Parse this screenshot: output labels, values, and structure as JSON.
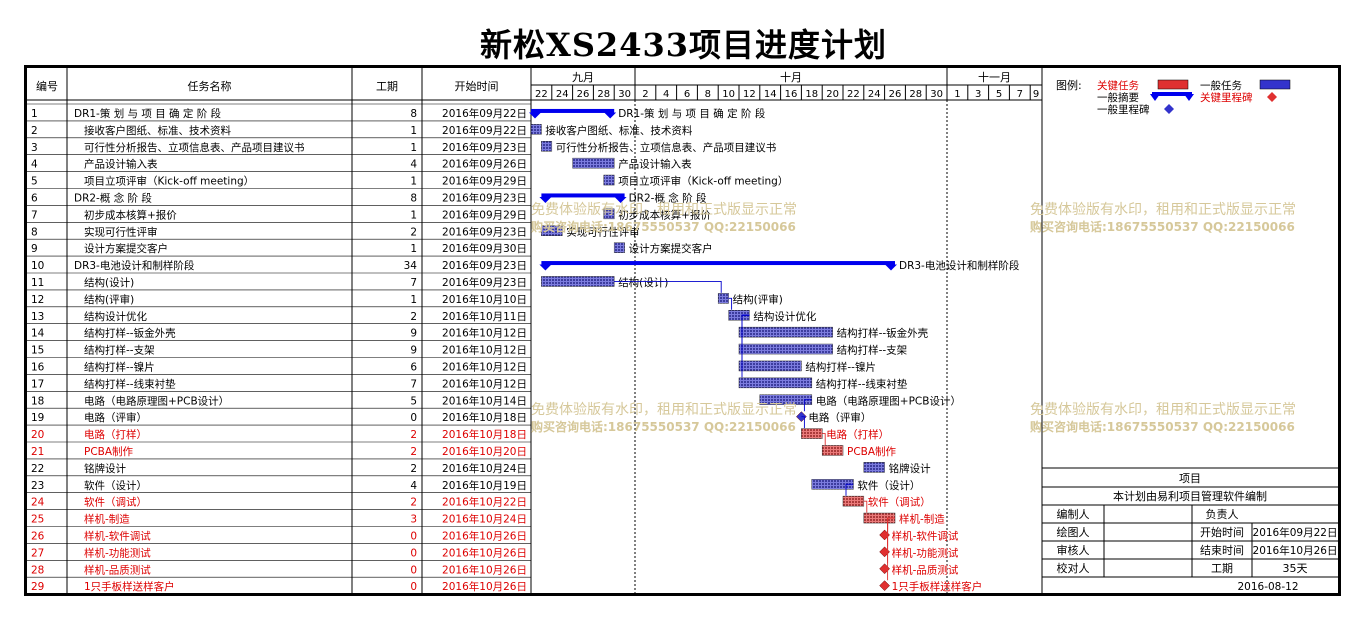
{
  "title": "新松XS2433项目进度计划",
  "columns": {
    "id": "编号",
    "name": "任务名称",
    "duration": "工期",
    "start": "开始时间"
  },
  "months": [
    {
      "label": "九月",
      "days": [
        "22",
        "24",
        "26",
        "28",
        "30"
      ]
    },
    {
      "label": "十月",
      "days": [
        "2",
        "4",
        "6",
        "8",
        "10",
        "12",
        "14",
        "16",
        "18",
        "20",
        "22",
        "24",
        "26",
        "28",
        "30"
      ]
    },
    {
      "label": "十一月",
      "days": [
        "1",
        "3",
        "5",
        "7",
        "9"
      ]
    }
  ],
  "legend": {
    "title": "图例:",
    "critical_task": "关键任务",
    "normal_task": "一般任务",
    "summary": "一般摘要",
    "critical_milestone": "关键里程碑",
    "milestone": "一般里程碑"
  },
  "watermark": {
    "line1": "免费体验版有水印，租用和正式版显示正常",
    "line2": "购买咨询电话:18675550537 QQ:22150066"
  },
  "colors": {
    "normal": "#3333cc",
    "critical": "#e03030",
    "summary": "#0000ee",
    "critical_text": "#dd0000",
    "watermark": "#d6c89a"
  },
  "info": {
    "project_header": "项目",
    "note": "本计划由易利项目管理软件编制",
    "author_label": "编制人",
    "owner_label": "负责人",
    "drawer_label": "绘图人",
    "start_label": "开始时间",
    "start_value": "2016年09月22日",
    "reviewer_label": "审核人",
    "end_label": "结束时间",
    "end_value": "2016年10月26日",
    "checker_label": "校对人",
    "duration_label": "工期",
    "duration_value": "35天",
    "date": "2016-08-12"
  },
  "chart_data": {
    "type": "gantt",
    "title": "新松XS2433项目进度计划",
    "x_range": [
      "2016-09-21",
      "2016-11-10"
    ],
    "tasks": [
      {
        "id": "1",
        "name": "DR1-策 划 与 项 目 确 定 阶 段",
        "duration": 8,
        "start": "2016年09月22日",
        "kind": "summary",
        "critical": false
      },
      {
        "id": "2",
        "name": "接收客户图纸、标准、技术资料",
        "duration": 1,
        "start": "2016年09月22日",
        "kind": "task",
        "critical": false
      },
      {
        "id": "3",
        "name": "可行性分析报告、立项信息表、产品项目建议书",
        "duration": 1,
        "start": "2016年09月23日",
        "kind": "task",
        "critical": false
      },
      {
        "id": "4",
        "name": "产品设计输入表",
        "duration": 4,
        "start": "2016年09月26日",
        "kind": "task",
        "critical": false
      },
      {
        "id": "5",
        "name": "项目立项评审（Kick-off meeting）",
        "duration": 1,
        "start": "2016年09月29日",
        "kind": "task",
        "critical": false
      },
      {
        "id": "6",
        "name": "DR2-概 念 阶 段",
        "duration": 8,
        "start": "2016年09月23日",
        "kind": "summary",
        "critical": false
      },
      {
        "id": "7",
        "name": "初步成本核算+报价",
        "duration": 1,
        "start": "2016年09月29日",
        "kind": "task",
        "critical": false
      },
      {
        "id": "8",
        "name": "实现可行性评审",
        "duration": 2,
        "start": "2016年09月23日",
        "kind": "task",
        "critical": false
      },
      {
        "id": "9",
        "name": "设计方案提交客户",
        "duration": 1,
        "start": "2016年09月30日",
        "kind": "task",
        "critical": false
      },
      {
        "id": "10",
        "name": "DR3-电池设计和制样阶段",
        "duration": 34,
        "start": "2016年09月23日",
        "kind": "summary",
        "critical": false
      },
      {
        "id": "11",
        "name": "结构(设计)",
        "duration": 7,
        "start": "2016年09月23日",
        "kind": "task",
        "critical": false
      },
      {
        "id": "12",
        "name": "结构(评审)",
        "duration": 1,
        "start": "2016年10月10日",
        "kind": "task",
        "critical": false
      },
      {
        "id": "13",
        "name": "结构设计优化",
        "duration": 2,
        "start": "2016年10月11日",
        "kind": "task",
        "critical": false
      },
      {
        "id": "14",
        "name": "结构打样--钣金外壳",
        "duration": 9,
        "start": "2016年10月12日",
        "kind": "task",
        "critical": false
      },
      {
        "id": "15",
        "name": "结构打样--支架",
        "duration": 9,
        "start": "2016年10月12日",
        "kind": "task",
        "critical": false
      },
      {
        "id": "16",
        "name": "结构打样--镍片",
        "duration": 6,
        "start": "2016年10月12日",
        "kind": "task",
        "critical": false
      },
      {
        "id": "17",
        "name": "结构打样--线束衬垫",
        "duration": 7,
        "start": "2016年10月12日",
        "kind": "task",
        "critical": false
      },
      {
        "id": "18",
        "name": "电路（电路原理图+PCB设计）",
        "duration": 5,
        "start": "2016年10月14日",
        "kind": "task",
        "critical": false
      },
      {
        "id": "19",
        "name": "电路（评审）",
        "duration": 0,
        "start": "2016年10月18日",
        "kind": "milestone",
        "critical": false
      },
      {
        "id": "20",
        "name": "电路（打样）",
        "duration": 2,
        "start": "2016年10月18日",
        "kind": "task",
        "critical": true
      },
      {
        "id": "21",
        "name": "PCBA制作",
        "duration": 2,
        "start": "2016年10月20日",
        "kind": "task",
        "critical": true
      },
      {
        "id": "22",
        "name": "铭牌设计",
        "duration": 2,
        "start": "2016年10月24日",
        "kind": "task",
        "critical": false
      },
      {
        "id": "23",
        "name": "软件（设计）",
        "duration": 4,
        "start": "2016年10月19日",
        "kind": "task",
        "critical": false
      },
      {
        "id": "24",
        "name": "软件（调试）",
        "duration": 2,
        "start": "2016年10月22日",
        "kind": "task",
        "critical": true
      },
      {
        "id": "25",
        "name": "样机-制造",
        "duration": 3,
        "start": "2016年10月24日",
        "kind": "task",
        "critical": true
      },
      {
        "id": "26",
        "name": "样机-软件调试",
        "duration": 0,
        "start": "2016年10月26日",
        "kind": "milestone",
        "critical": true
      },
      {
        "id": "27",
        "name": "样机-功能测试",
        "duration": 0,
        "start": "2016年10月26日",
        "kind": "milestone",
        "critical": true
      },
      {
        "id": "28",
        "name": "样机-品质测试",
        "duration": 0,
        "start": "2016年10月26日",
        "kind": "milestone",
        "critical": true
      },
      {
        "id": "29",
        "name": "1只手板样送样客户",
        "duration": 0,
        "start": "2016年10月26日",
        "kind": "milestone",
        "critical": true
      }
    ]
  }
}
